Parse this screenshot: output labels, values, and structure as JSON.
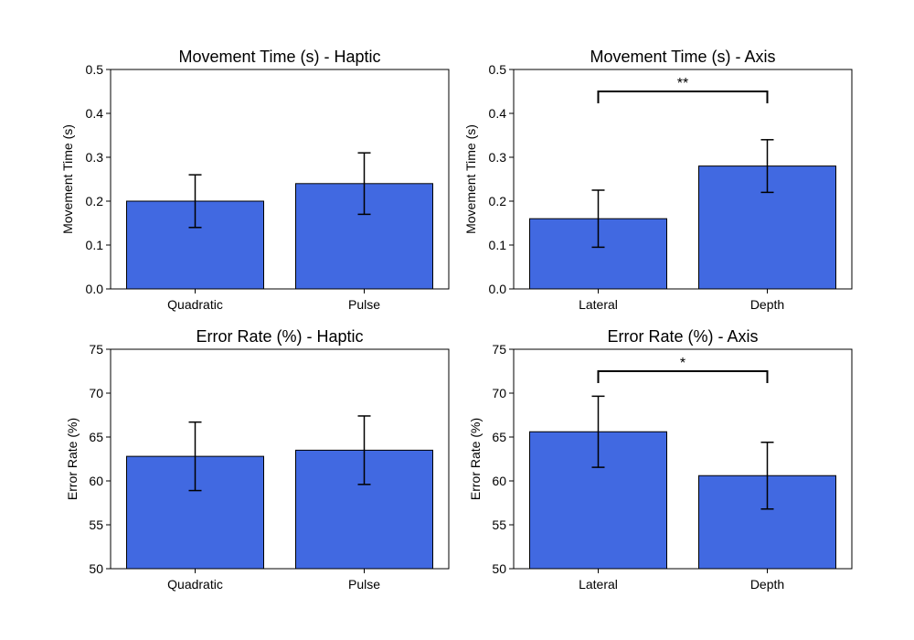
{
  "chart_data": [
    {
      "type": "bar",
      "title": "Movement Time (s) - Haptic",
      "ylabel": "Movement Time (s)",
      "xlabel": "",
      "categories": [
        "Quadratic",
        "Pulse"
      ],
      "values": [
        0.2,
        0.24
      ],
      "error": [
        0.06,
        0.07
      ],
      "ylim": [
        0.0,
        0.5
      ],
      "yticks": [
        "0.0",
        "0.1",
        "0.2",
        "0.3",
        "0.4",
        "0.5"
      ],
      "bar_color": "#4169e1",
      "significance": null
    },
    {
      "type": "bar",
      "title": "Movement Time (s) - Axis",
      "ylabel": "Movement Time (s)",
      "xlabel": "",
      "categories": [
        "Lateral",
        "Depth"
      ],
      "values": [
        0.16,
        0.28
      ],
      "error": [
        0.065,
        0.06
      ],
      "ylim": [
        0.0,
        0.5
      ],
      "yticks": [
        "0.0",
        "0.1",
        "0.2",
        "0.3",
        "0.4",
        "0.5"
      ],
      "bar_color": "#4169e1",
      "significance": {
        "label": "**",
        "y": 0.45
      }
    },
    {
      "type": "bar",
      "title": "Error Rate (%) - Haptic",
      "ylabel": "Error Rate (%)",
      "xlabel": "",
      "categories": [
        "Quadratic",
        "Pulse"
      ],
      "values": [
        62.8,
        63.5
      ],
      "error": [
        3.9,
        3.9
      ],
      "ylim": [
        50,
        75
      ],
      "yticks": [
        "50",
        "55",
        "60",
        "65",
        "70",
        "75"
      ],
      "bar_color": "#4169e1",
      "significance": null
    },
    {
      "type": "bar",
      "title": "Error Rate (%) - Axis",
      "ylabel": "Error Rate (%)",
      "xlabel": "",
      "categories": [
        "Lateral",
        "Depth"
      ],
      "values": [
        65.6,
        60.6
      ],
      "error": [
        4.05,
        3.8
      ],
      "ylim": [
        50,
        75
      ],
      "yticks": [
        "50",
        "55",
        "60",
        "65",
        "70",
        "75"
      ],
      "bar_color": "#4169e1",
      "significance": {
        "label": "*",
        "y": 72.5
      }
    }
  ]
}
